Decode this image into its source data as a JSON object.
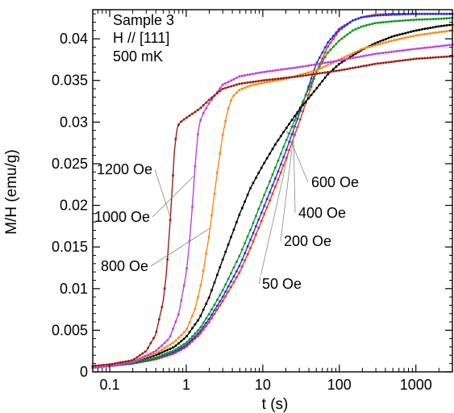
{
  "chart_data": {
    "type": "line",
    "xlabel": "t (s)",
    "ylabel": "M/H (emu/g)",
    "x_scale": "log",
    "xlim": [
      0.06,
      3000
    ],
    "ylim": [
      0,
      0.0435
    ],
    "x_ticks": [
      {
        "value": 0.1,
        "label": "0.1"
      },
      {
        "value": 1,
        "label": "1"
      },
      {
        "value": 10,
        "label": "10"
      },
      {
        "value": 100,
        "label": "100"
      },
      {
        "value": 1000,
        "label": "1000"
      }
    ],
    "y_ticks": [
      {
        "value": 0,
        "label": "0"
      },
      {
        "value": 0.005,
        "label": "0.005"
      },
      {
        "value": 0.01,
        "label": "0.01"
      },
      {
        "value": 0.015,
        "label": "0.015"
      },
      {
        "value": 0.02,
        "label": "0.02"
      },
      {
        "value": 0.025,
        "label": "0.025"
      },
      {
        "value": 0.03,
        "label": "0.03"
      },
      {
        "value": 0.035,
        "label": "0.035"
      },
      {
        "value": 0.04,
        "label": "0.04"
      }
    ],
    "annotations": [
      "Sample 3",
      "H // [111]",
      "500 mK"
    ],
    "series": [
      {
        "name": "50 Oe",
        "color": "#ee3322",
        "t": [
          0.06,
          0.1,
          0.2,
          0.4,
          0.7,
          1,
          1.5,
          2,
          3,
          5,
          7,
          10,
          15,
          20,
          30,
          50,
          70,
          100,
          150,
          200,
          300,
          500,
          1000,
          2000,
          3000
        ],
        "m": [
          0.0005,
          0.0007,
          0.001,
          0.0015,
          0.0022,
          0.003,
          0.0045,
          0.006,
          0.0085,
          0.012,
          0.015,
          0.0185,
          0.0225,
          0.0255,
          0.03,
          0.036,
          0.039,
          0.041,
          0.0422,
          0.0426,
          0.0429,
          0.043,
          0.043,
          0.043,
          0.043
        ]
      },
      {
        "name": "200 Oe",
        "color": "#2233ee",
        "t": [
          0.06,
          0.1,
          0.2,
          0.4,
          0.7,
          1,
          1.5,
          2,
          3,
          5,
          7,
          10,
          15,
          20,
          30,
          50,
          70,
          100,
          150,
          200,
          300,
          500,
          1000,
          2000,
          3000
        ],
        "m": [
          0.0005,
          0.0007,
          0.001,
          0.0016,
          0.0024,
          0.0032,
          0.0048,
          0.0064,
          0.009,
          0.0128,
          0.016,
          0.0195,
          0.0235,
          0.0265,
          0.031,
          0.037,
          0.0395,
          0.0412,
          0.0422,
          0.0426,
          0.0428,
          0.0429,
          0.043,
          0.043,
          0.043
        ]
      },
      {
        "name": "400 Oe",
        "color": "#119922",
        "t": [
          0.06,
          0.1,
          0.2,
          0.4,
          0.7,
          1,
          1.5,
          2,
          3,
          5,
          7,
          10,
          15,
          20,
          30,
          50,
          70,
          100,
          150,
          200,
          300,
          500,
          1000,
          2000,
          3000
        ],
        "m": [
          0.0005,
          0.0007,
          0.0011,
          0.0017,
          0.0026,
          0.0035,
          0.0052,
          0.007,
          0.0098,
          0.014,
          0.0172,
          0.0208,
          0.0248,
          0.0277,
          0.0315,
          0.036,
          0.0383,
          0.0398,
          0.041,
          0.0415,
          0.0419,
          0.0421,
          0.0423,
          0.0424,
          0.0425
        ]
      },
      {
        "name": "600 Oe",
        "color": "#000000",
        "t": [
          0.06,
          0.1,
          0.2,
          0.4,
          0.7,
          1,
          1.5,
          2,
          3,
          5,
          7,
          10,
          15,
          20,
          30,
          50,
          70,
          100,
          150,
          200,
          300,
          500,
          1000,
          2000,
          3000
        ],
        "m": [
          0.0005,
          0.0007,
          0.0012,
          0.002,
          0.003,
          0.0042,
          0.0065,
          0.009,
          0.0135,
          0.019,
          0.0222,
          0.0248,
          0.0275,
          0.0292,
          0.0315,
          0.034,
          0.0357,
          0.037,
          0.038,
          0.0387,
          0.0395,
          0.0403,
          0.041,
          0.0415,
          0.0417
        ]
      },
      {
        "name": "800 Oe",
        "color": "#ff8811",
        "t": [
          0.06,
          0.1,
          0.2,
          0.4,
          0.7,
          1,
          1.3,
          1.6,
          2,
          2.5,
          3,
          3.5,
          4,
          5,
          7,
          10,
          20,
          50,
          100,
          200,
          500,
          1000,
          2000,
          3000
        ],
        "m": [
          0.0005,
          0.0007,
          0.0012,
          0.0022,
          0.0036,
          0.005,
          0.0075,
          0.011,
          0.0165,
          0.0235,
          0.0285,
          0.0315,
          0.033,
          0.0339,
          0.0344,
          0.0347,
          0.0352,
          0.0362,
          0.0375,
          0.0388,
          0.0398,
          0.0404,
          0.0408,
          0.041
        ]
      },
      {
        "name": "1000 Oe",
        "color": "#bb44dd",
        "t": [
          0.06,
          0.1,
          0.2,
          0.4,
          0.6,
          0.8,
          1,
          1.1,
          1.2,
          1.3,
          1.4,
          1.5,
          1.7,
          2,
          3,
          5,
          10,
          30,
          100,
          300,
          1000,
          2000,
          3000
        ],
        "m": [
          0.0005,
          0.0007,
          0.0012,
          0.0025,
          0.004,
          0.007,
          0.0118,
          0.0155,
          0.0198,
          0.0245,
          0.0282,
          0.03,
          0.0312,
          0.0323,
          0.0345,
          0.0355,
          0.036,
          0.0366,
          0.0374,
          0.0382,
          0.0388,
          0.0391,
          0.0393
        ]
      },
      {
        "name": "1200 Oe",
        "color": "#992211",
        "t": [
          0.06,
          0.1,
          0.2,
          0.3,
          0.4,
          0.5,
          0.55,
          0.6,
          0.65,
          0.7,
          0.75,
          0.8,
          0.9,
          1,
          1.5,
          2,
          3,
          5,
          10,
          30,
          100,
          300,
          1000,
          2000,
          3000
        ],
        "m": [
          0.0007,
          0.0009,
          0.0014,
          0.0025,
          0.0045,
          0.0085,
          0.0118,
          0.0165,
          0.0215,
          0.0265,
          0.029,
          0.0298,
          0.0302,
          0.0305,
          0.0316,
          0.0327,
          0.034,
          0.0346,
          0.035,
          0.0355,
          0.0362,
          0.037,
          0.0376,
          0.0378,
          0.0379
        ]
      }
    ],
    "series_labels": [
      {
        "series": "1200 Oe",
        "text": "1200 Oe",
        "side": "left",
        "t_point": 0.62
      },
      {
        "series": "1000 Oe",
        "text": "1000 Oe",
        "side": "left",
        "t_point": 1.28
      },
      {
        "series": "800 Oe",
        "text": "800 Oe",
        "side": "left",
        "t_point": 2.05
      },
      {
        "series": "600 Oe",
        "text": "600 Oe",
        "side": "right",
        "t_point": 20
      },
      {
        "series": "400 Oe",
        "text": "400 Oe",
        "side": "right",
        "t_point": 25
      },
      {
        "series": "200 Oe",
        "text": "200 Oe",
        "side": "right",
        "t_point": 26
      },
      {
        "series": "50 Oe",
        "text": "50 Oe",
        "side": "right",
        "t_point": 22
      }
    ]
  }
}
